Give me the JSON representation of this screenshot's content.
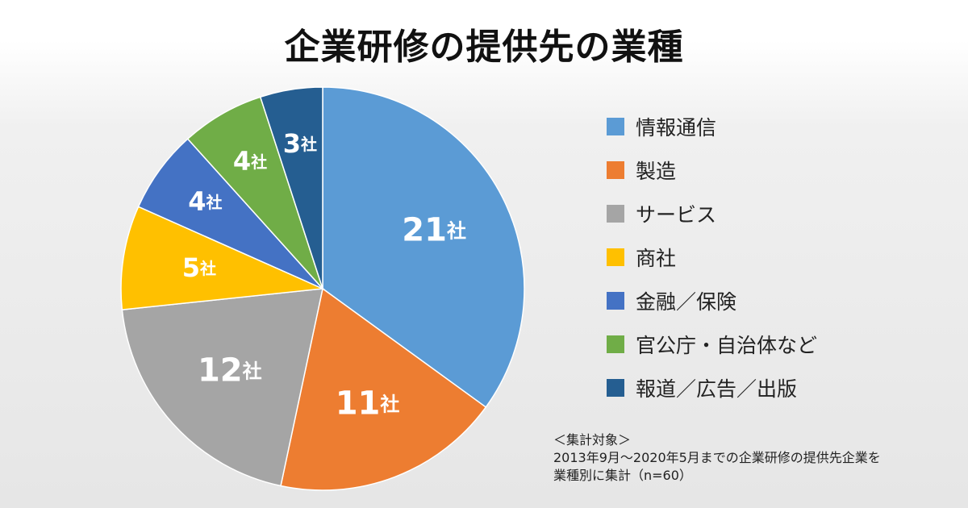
{
  "title": "企業研修の提供先の業種",
  "chart_data": {
    "type": "pie",
    "title": "企業研修の提供先の業種",
    "unit": "社",
    "slices": [
      {
        "name": "情報通信",
        "value": 21,
        "label": "21社",
        "color": "#5b9bd5"
      },
      {
        "name": "製造",
        "value": 11,
        "label": "11社",
        "color": "#ed7d31"
      },
      {
        "name": "サービス",
        "value": 12,
        "label": "12社",
        "color": "#a5a5a5"
      },
      {
        "name": "商社",
        "value": 5,
        "label": "5社",
        "color": "#ffc000"
      },
      {
        "name": "金融／保険",
        "value": 4,
        "label": "4社",
        "color": "#4472c4"
      },
      {
        "name": "官公庁・自治体など",
        "value": 4,
        "label": "4社",
        "color": "#70ad47"
      },
      {
        "name": "報道／広告／出版",
        "value": 3,
        "label": "3社",
        "color": "#255e91"
      }
    ],
    "legend_position": "right"
  },
  "note": {
    "line1": "＜集計対象＞",
    "line2": "2013年9月〜2020年5月までの企業研修の提供先企業を",
    "line3": "業種別に集計（n=60）"
  }
}
